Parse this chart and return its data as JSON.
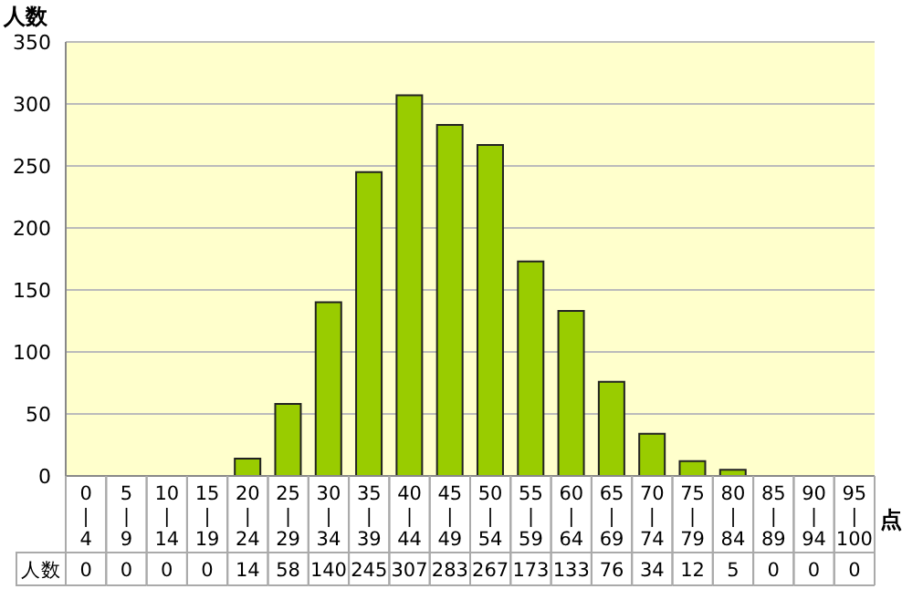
{
  "chart_data": {
    "type": "bar",
    "ylabel": "人数",
    "xlabel": "点",
    "categories": [
      "0\n|\n4",
      "5\n|\n9",
      "10\n|\n14",
      "15\n|\n19",
      "20\n|\n24",
      "25\n|\n29",
      "30\n|\n34",
      "35\n|\n39",
      "40\n|\n44",
      "45\n|\n49",
      "50\n|\n54",
      "55\n|\n59",
      "60\n|\n64",
      "65\n|\n69",
      "70\n|\n74",
      "75\n|\n79",
      "80\n|\n84",
      "85\n|\n89",
      "90\n|\n94",
      "95\n|\n100"
    ],
    "values": [
      0,
      0,
      0,
      0,
      14,
      58,
      140,
      245,
      307,
      283,
      267,
      173,
      133,
      76,
      34,
      12,
      5,
      0,
      0,
      0
    ],
    "color": "#99cc00",
    "ylim": [
      0,
      350
    ],
    "yticks": [
      0,
      50,
      100,
      150,
      200,
      250,
      300,
      350
    ],
    "grid": "y",
    "data_labels": true,
    "annotations": [
      "人数"
    ]
  }
}
